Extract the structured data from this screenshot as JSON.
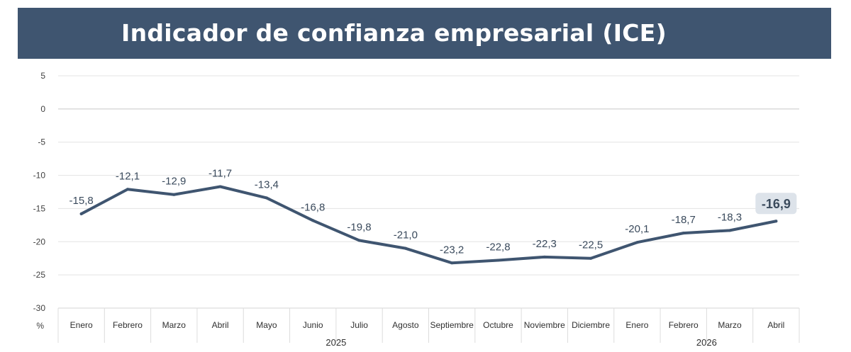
{
  "title": "Indicador de confianza empresarial (ICE)",
  "colors": {
    "banner": "#3f5570",
    "line": "#3f5570",
    "grid": "#e3e3e3",
    "highlight_bg": "#dde3ea"
  },
  "chart_data": {
    "type": "line",
    "title": "Indicador de confianza empresarial (ICE)",
    "ylabel": "%",
    "ylim": [
      -30,
      5
    ],
    "yticks": [
      5,
      0,
      -5,
      -10,
      -15,
      -20,
      -25,
      -30
    ],
    "grid": true,
    "categories": [
      "Enero",
      "Febrero",
      "Marzo",
      "Abril",
      "Mayo",
      "Junio",
      "Julio",
      "Agosto",
      "Septiembre",
      "Octubre",
      "Noviembre",
      "Diciembre",
      "Enero",
      "Febrero",
      "Marzo",
      "Abril"
    ],
    "groups": [
      {
        "label": "2025",
        "count": 12
      },
      {
        "label": "2026",
        "count": 4
      }
    ],
    "values": [
      -15.8,
      -12.1,
      -12.9,
      -11.7,
      -13.4,
      -16.8,
      -19.8,
      -21.0,
      -23.2,
      -22.8,
      -22.3,
      -22.5,
      -20.1,
      -18.7,
      -18.3,
      -16.9
    ],
    "value_labels": [
      "-15,8",
      "-12,1",
      "-12,9",
      "-11,7",
      "-13,4",
      "-16,8",
      "-19,8",
      "-21,0",
      "-23,2",
      "-22,8",
      "-22,3",
      "-22,5",
      "-20,1",
      "-18,7",
      "-18,3",
      "-16,9"
    ]
  }
}
